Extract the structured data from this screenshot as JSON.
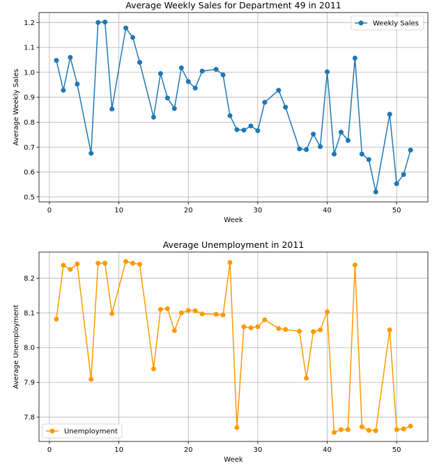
{
  "chart_data": [
    {
      "type": "line",
      "title": "Average Weekly Sales for Department 49 in 2011",
      "xlabel": "Week",
      "ylabel": "Average Weekly Sales",
      "xlim": [
        -1.5,
        54.5
      ],
      "ylim": [
        0.48,
        1.24
      ],
      "xticks": [
        0,
        10,
        20,
        30,
        40,
        50
      ],
      "yticks": [
        0.5,
        0.6,
        0.7,
        0.8,
        0.9,
        1.0,
        1.1,
        1.2
      ],
      "ytick_labels": [
        "0.5",
        "0.6",
        "0.7",
        "0.8",
        "0.9",
        "1.0",
        "1.1",
        "1.2"
      ],
      "grid": true,
      "legend_position": "top-right",
      "color": "#1f77b4",
      "series": [
        {
          "name": "Weekly Sales",
          "x": [
            1,
            2,
            3,
            4,
            6,
            7,
            8,
            9,
            11,
            12,
            13,
            15,
            16,
            17,
            18,
            19,
            20,
            21,
            22,
            24,
            25,
            26,
            27,
            28,
            29,
            30,
            31,
            33,
            34,
            36,
            37,
            38,
            39,
            40,
            41,
            42,
            43,
            44,
            45,
            46,
            47,
            49,
            50,
            51,
            52
          ],
          "y": [
            1.048,
            0.928,
            1.06,
            0.953,
            0.675,
            1.2,
            1.202,
            0.853,
            1.178,
            1.14,
            1.04,
            0.82,
            0.995,
            0.897,
            0.855,
            1.018,
            0.963,
            0.937,
            1.005,
            1.012,
            0.99,
            0.826,
            0.77,
            0.768,
            0.785,
            0.766,
            0.88,
            0.928,
            0.86,
            0.693,
            0.69,
            0.752,
            0.702,
            1.002,
            0.672,
            0.76,
            0.727,
            1.057,
            0.672,
            0.65,
            0.52,
            0.832,
            0.553,
            0.59,
            0.688
          ]
        }
      ]
    },
    {
      "type": "line",
      "title": "Average Unemployment in 2011",
      "xlabel": "Week",
      "ylabel": "Average Unemployment",
      "xlim": [
        -1.5,
        54.5
      ],
      "ylim": [
        7.73,
        8.275
      ],
      "xticks": [
        0,
        10,
        20,
        30,
        40,
        50
      ],
      "yticks": [
        7.8,
        7.9,
        8.0,
        8.1,
        8.2
      ],
      "ytick_labels": [
        "7.8",
        "7.9",
        "8.0",
        "8.1",
        "8.2"
      ],
      "grid": true,
      "legend_position": "bottom-left",
      "color": "#ff9900",
      "series": [
        {
          "name": "Unemployment",
          "x": [
            1,
            2,
            3,
            4,
            6,
            7,
            8,
            9,
            11,
            12,
            13,
            15,
            16,
            17,
            18,
            19,
            20,
            21,
            22,
            24,
            25,
            26,
            27,
            28,
            29,
            30,
            31,
            33,
            34,
            36,
            37,
            38,
            39,
            40,
            41,
            42,
            43,
            44,
            45,
            46,
            47,
            49,
            50,
            51,
            52
          ],
          "y": [
            8.082,
            8.237,
            8.225,
            8.241,
            7.909,
            8.243,
            8.243,
            8.098,
            8.248,
            8.243,
            8.24,
            7.939,
            8.11,
            8.112,
            8.049,
            8.1,
            8.107,
            8.106,
            8.097,
            8.096,
            8.094,
            8.245,
            7.77,
            8.06,
            8.057,
            8.06,
            8.08,
            8.055,
            8.052,
            8.047,
            7.912,
            8.046,
            8.051,
            8.103,
            7.756,
            7.764,
            7.764,
            8.238,
            7.772,
            7.762,
            7.761,
            8.051,
            7.764,
            7.766,
            7.774
          ]
        }
      ]
    }
  ]
}
